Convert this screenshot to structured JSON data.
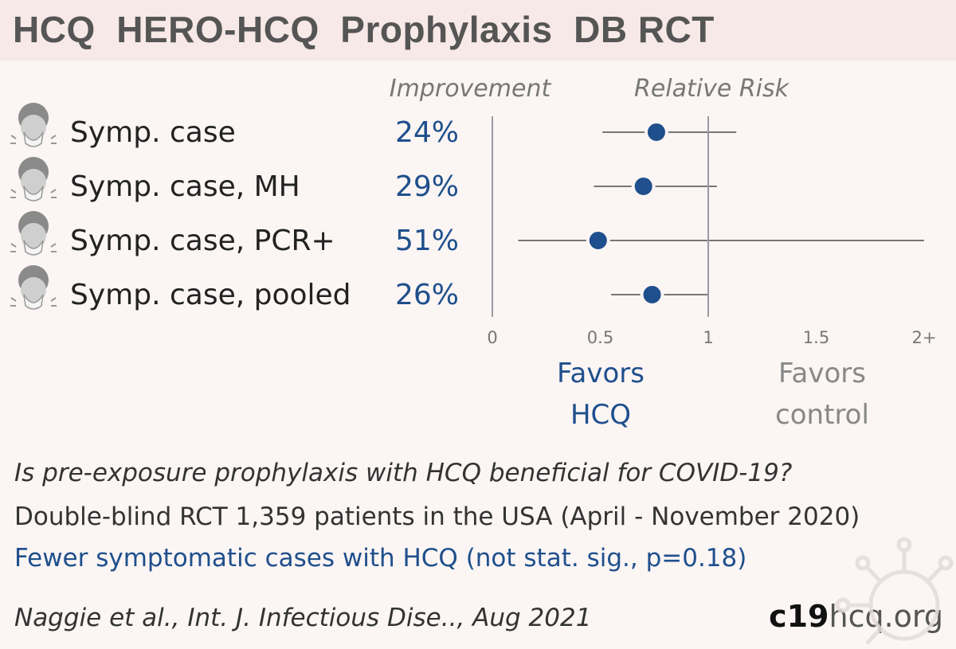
{
  "title": "HCQ  HERO-HCQ  Prophylaxis  DB RCT",
  "chart_data": {
    "type": "forest",
    "improvement_header": "Improvement",
    "rr_header": "Relative Risk",
    "rows": [
      {
        "label": "Symp. case",
        "improvement": "24%",
        "rr": 0.76,
        "ci": [
          0.51,
          1.13
        ]
      },
      {
        "label": "Symp. case, MH",
        "improvement": "29%",
        "rr": 0.7,
        "ci": [
          0.47,
          1.04
        ]
      },
      {
        "label": "Symp. case, PCR+",
        "improvement": "51%",
        "rr": 0.49,
        "ci": [
          0.12,
          2.0
        ]
      },
      {
        "label": "Symp. case, pooled",
        "improvement": "26%",
        "rr": 0.74,
        "ci": [
          0.55,
          1.0
        ]
      }
    ],
    "x_ticks": [
      "0",
      "0.5",
      "1",
      "1.5",
      "2+"
    ],
    "xlim": [
      0,
      2
    ],
    "reference_line": 1,
    "favors_left": [
      "Favors",
      "HCQ"
    ],
    "favors_right": [
      "Favors",
      "control"
    ],
    "colors": {
      "point": "#1f4f8c",
      "ci": "#777777",
      "axis": "#9a9aa3"
    }
  },
  "question": "Is pre-exposure prophylaxis with HCQ beneficial for COVID-19?",
  "design": "Double-blind RCT 1,359 patients in the USA (April - November 2020)",
  "conclusion": "Fewer symptomatic cases with HCQ (not stat. sig., p=0.18)",
  "citation": "Naggie et al., Int. J. Infectious Dise.., Aug 2021",
  "brand": {
    "bold": "c19",
    "rest": "hcq.org"
  },
  "icons": {
    "row_icon": "sneezing-face-icon",
    "watermark": "virus-icon"
  }
}
